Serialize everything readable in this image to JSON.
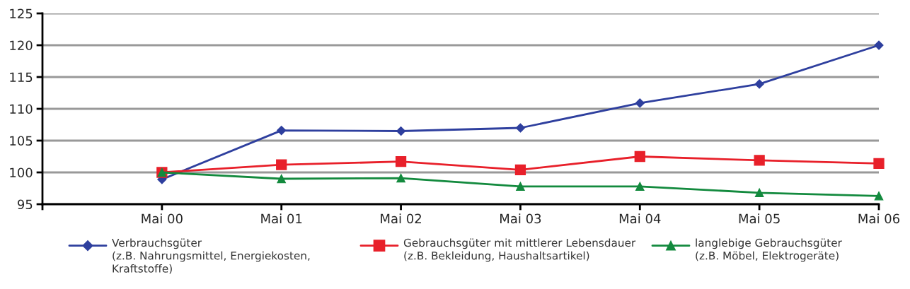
{
  "chart_data": {
    "type": "line",
    "categories": [
      null,
      "Mai 00",
      "Mai 01",
      "Mai 02",
      "Mai 03",
      "Mai 04",
      "Mai 05",
      "Mai 06"
    ],
    "series": [
      {
        "name": "Verbrauchsgüter\n(z.B. Nahrungsmittel, Energiekosten,\nKraftstoffe)",
        "color": "#2e3f9e",
        "marker": "diamond",
        "values": [
          null,
          98.9,
          106.6,
          106.5,
          107.0,
          110.9,
          113.9,
          120.0
        ]
      },
      {
        "name": "Gebrauchsgüter mit mittlerer Lebensdauer\n(z.B. Bekleidung, Haushaltsartikel)",
        "color": "#e8202a",
        "marker": "square",
        "values": [
          null,
          100.0,
          101.2,
          101.7,
          100.4,
          102.5,
          101.9,
          101.4
        ]
      },
      {
        "name": "langlebige Gebrauchsgüter\n(z.B. Möbel, Elektrogeräte)",
        "color": "#138a3e",
        "marker": "triangle",
        "values": [
          null,
          100.0,
          99.0,
          99.1,
          97.8,
          97.8,
          96.8,
          96.3
        ]
      }
    ],
    "ylim": [
      95,
      125
    ],
    "yticks": [
      95,
      100,
      105,
      110,
      115,
      120,
      125
    ],
    "grid": "y",
    "legend": "bottom",
    "line_style": "solid"
  }
}
